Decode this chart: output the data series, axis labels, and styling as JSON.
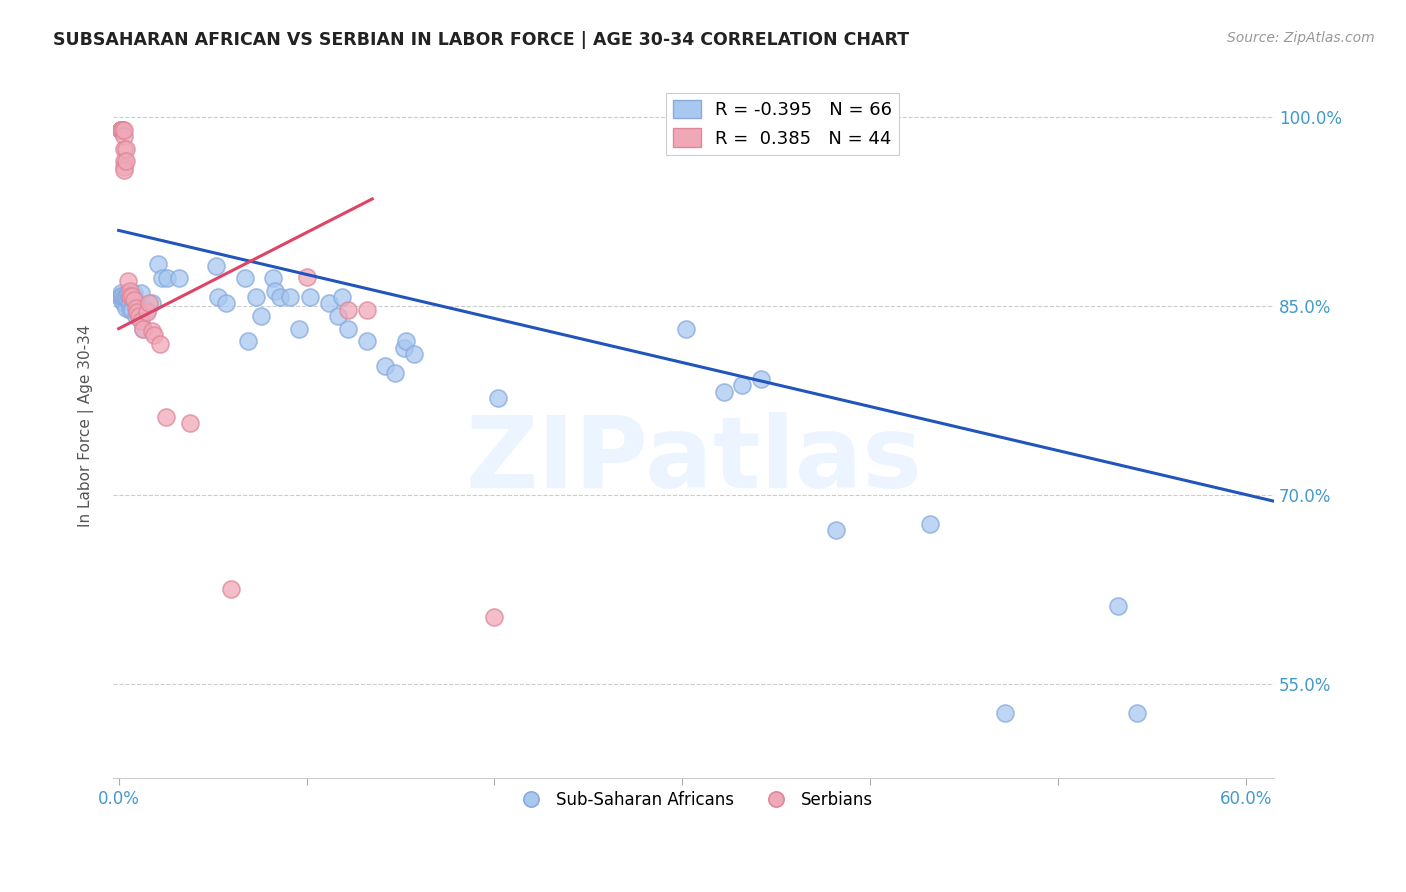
{
  "title": "SUBSAHARAN AFRICAN VS SERBIAN IN LABOR FORCE | AGE 30-34 CORRELATION CHART",
  "source_text": "Source: ZipAtlas.com",
  "ylabel": "In Labor Force | Age 30-34",
  "y_ticks": [
    0.55,
    0.7,
    0.85,
    1.0
  ],
  "y_tick_labels": [
    "55.0%",
    "70.0%",
    "85.0%",
    "100.0%"
  ],
  "xmin": -0.003,
  "xmax": 0.615,
  "ymin": 0.475,
  "ymax": 1.035,
  "legend_label_blue": "Sub-Saharan Africans",
  "legend_label_pink": "Serbians",
  "blue_color": "#a8c8f0",
  "pink_color": "#f0a8b8",
  "blue_edge_color": "#88aadd",
  "pink_edge_color": "#dd8899",
  "blue_line_color": "#2255bb",
  "pink_line_color": "#dd4466",
  "grid_color": "#cccccc",
  "title_color": "#222222",
  "source_color": "#999999",
  "right_axis_color": "#4499cc",
  "bottom_axis_color": "#4499cc",
  "blue_points": [
    [
      0.001,
      0.86
    ],
    [
      0.001,
      0.858
    ],
    [
      0.001,
      0.856
    ],
    [
      0.002,
      0.857
    ],
    [
      0.002,
      0.854
    ],
    [
      0.002,
      0.858
    ],
    [
      0.003,
      0.856
    ],
    [
      0.003,
      0.852
    ],
    [
      0.003,
      0.856
    ],
    [
      0.004,
      0.855
    ],
    [
      0.004,
      0.848
    ],
    [
      0.004,
      0.856
    ],
    [
      0.005,
      0.856
    ],
    [
      0.005,
      0.86
    ],
    [
      0.005,
      0.855
    ],
    [
      0.006,
      0.856
    ],
    [
      0.006,
      0.852
    ],
    [
      0.006,
      0.847
    ],
    [
      0.007,
      0.856
    ],
    [
      0.007,
      0.847
    ],
    [
      0.008,
      0.86
    ],
    [
      0.008,
      0.856
    ],
    [
      0.009,
      0.842
    ],
    [
      0.01,
      0.852
    ],
    [
      0.011,
      0.847
    ],
    [
      0.012,
      0.86
    ],
    [
      0.013,
      0.832
    ],
    [
      0.015,
      0.847
    ],
    [
      0.018,
      0.852
    ],
    [
      0.021,
      0.883
    ],
    [
      0.023,
      0.872
    ],
    [
      0.026,
      0.872
    ],
    [
      0.032,
      0.872
    ],
    [
      0.052,
      0.882
    ],
    [
      0.053,
      0.857
    ],
    [
      0.057,
      0.852
    ],
    [
      0.067,
      0.872
    ],
    [
      0.069,
      0.822
    ],
    [
      0.073,
      0.857
    ],
    [
      0.076,
      0.842
    ],
    [
      0.082,
      0.872
    ],
    [
      0.083,
      0.862
    ],
    [
      0.086,
      0.857
    ],
    [
      0.091,
      0.857
    ],
    [
      0.096,
      0.832
    ],
    [
      0.102,
      0.857
    ],
    [
      0.112,
      0.852
    ],
    [
      0.117,
      0.842
    ],
    [
      0.119,
      0.857
    ],
    [
      0.122,
      0.832
    ],
    [
      0.132,
      0.822
    ],
    [
      0.142,
      0.802
    ],
    [
      0.147,
      0.797
    ],
    [
      0.152,
      0.817
    ],
    [
      0.153,
      0.822
    ],
    [
      0.157,
      0.812
    ],
    [
      0.202,
      0.777
    ],
    [
      0.302,
      0.832
    ],
    [
      0.322,
      0.782
    ],
    [
      0.332,
      0.787
    ],
    [
      0.342,
      0.792
    ],
    [
      0.382,
      0.672
    ],
    [
      0.432,
      0.677
    ],
    [
      0.472,
      0.527
    ],
    [
      0.532,
      0.612
    ],
    [
      0.542,
      0.527
    ]
  ],
  "pink_points": [
    [
      0.001,
      0.99
    ],
    [
      0.001,
      0.99
    ],
    [
      0.001,
      0.99
    ],
    [
      0.001,
      0.99
    ],
    [
      0.002,
      0.99
    ],
    [
      0.002,
      0.99
    ],
    [
      0.002,
      0.99
    ],
    [
      0.002,
      0.99
    ],
    [
      0.002,
      0.99
    ],
    [
      0.002,
      0.99
    ],
    [
      0.002,
      0.99
    ],
    [
      0.002,
      0.99
    ],
    [
      0.002,
      0.99
    ],
    [
      0.002,
      0.99
    ],
    [
      0.003,
      0.985
    ],
    [
      0.003,
      0.975
    ],
    [
      0.003,
      0.965
    ],
    [
      0.003,
      0.96
    ],
    [
      0.003,
      0.958
    ],
    [
      0.003,
      0.99
    ],
    [
      0.004,
      0.975
    ],
    [
      0.004,
      0.965
    ],
    [
      0.005,
      0.87
    ],
    [
      0.006,
      0.862
    ],
    [
      0.006,
      0.858
    ],
    [
      0.007,
      0.858
    ],
    [
      0.008,
      0.855
    ],
    [
      0.009,
      0.848
    ],
    [
      0.01,
      0.845
    ],
    [
      0.011,
      0.842
    ],
    [
      0.012,
      0.838
    ],
    [
      0.013,
      0.832
    ],
    [
      0.015,
      0.845
    ],
    [
      0.016,
      0.852
    ],
    [
      0.018,
      0.83
    ],
    [
      0.019,
      0.827
    ],
    [
      0.022,
      0.82
    ],
    [
      0.025,
      0.762
    ],
    [
      0.038,
      0.757
    ],
    [
      0.06,
      0.625
    ],
    [
      0.1,
      0.873
    ],
    [
      0.122,
      0.847
    ],
    [
      0.132,
      0.847
    ],
    [
      0.2,
      0.603
    ]
  ],
  "blue_trend_x": [
    0.0,
    0.615
  ],
  "blue_trend_y": [
    0.91,
    0.695
  ],
  "pink_trend_x": [
    0.0,
    0.135
  ],
  "pink_trend_y": [
    0.832,
    0.935
  ]
}
